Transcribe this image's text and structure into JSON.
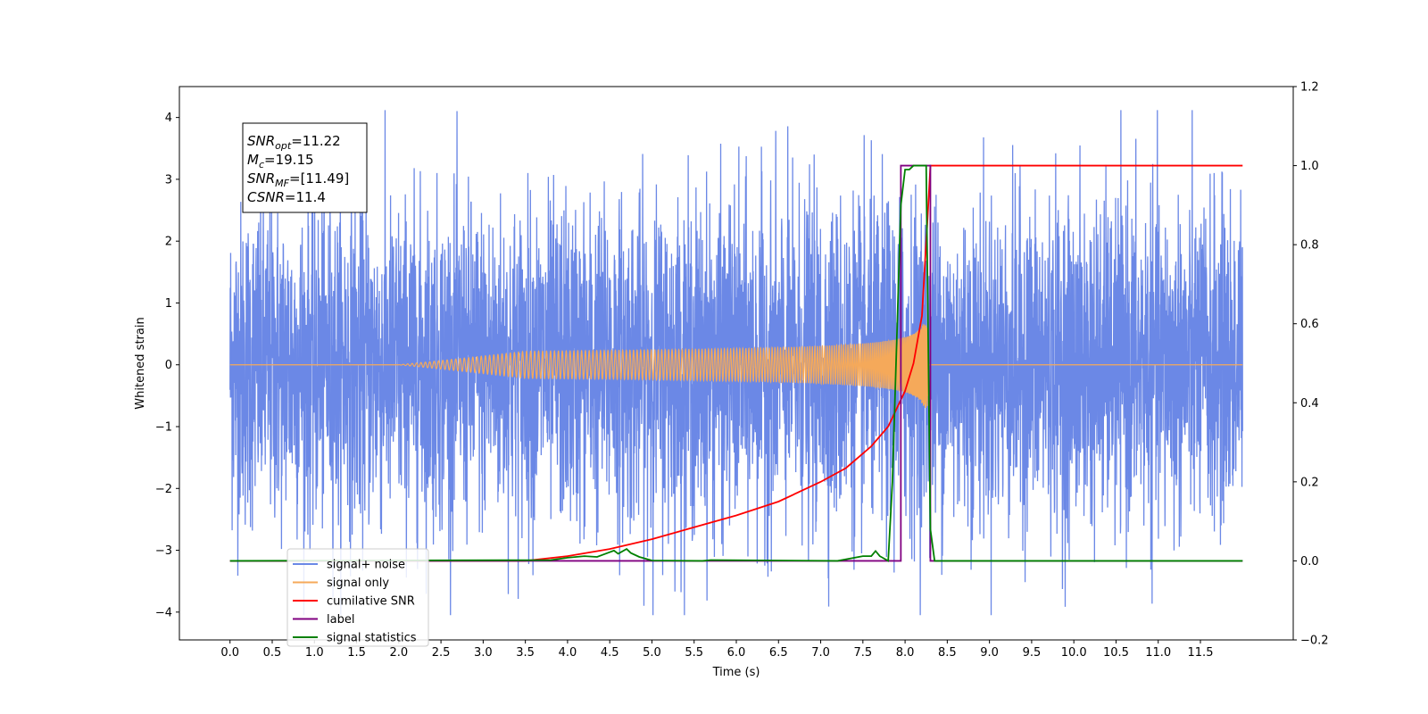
{
  "chart_data": {
    "type": "line",
    "xlabel": "Time (s)",
    "ylabel": "Whitened strain",
    "xlim": [
      -0.6,
      12.6
    ],
    "ylim": [
      -4.45,
      4.5
    ],
    "y2lim": [
      -0.2,
      1.2
    ],
    "x_ticks": [
      0.0,
      0.5,
      1.0,
      1.5,
      2.0,
      2.5,
      3.0,
      3.5,
      4.0,
      4.5,
      5.0,
      5.5,
      6.0,
      6.5,
      7.0,
      7.5,
      8.0,
      8.5,
      9.0,
      9.5,
      10.0,
      10.5,
      11.0,
      11.5
    ],
    "x_tick_labels": [
      "0.0",
      "0.5",
      "1.0",
      "1.5",
      "2.0",
      "2.5",
      "3.0",
      "3.5",
      "4.0",
      "4.5",
      "5.0",
      "5.5",
      "6.0",
      "6.5",
      "7.0",
      "7.5",
      "8.0",
      "8.5",
      "9.0",
      "9.5",
      "10.0",
      "10.5",
      "11.0",
      "11.5"
    ],
    "y_ticks": [
      -4,
      -3,
      -2,
      -1,
      0,
      1,
      2,
      3,
      4
    ],
    "y_tick_labels": [
      "−4",
      "−3",
      "−2",
      "−1",
      "0",
      "1",
      "2",
      "3",
      "4"
    ],
    "y2_ticks": [
      -0.2,
      0.0,
      0.2,
      0.4,
      0.6,
      0.8,
      1.0,
      1.2
    ],
    "y2_tick_labels": [
      "−0.2",
      "0.0",
      "0.2",
      "0.4",
      "0.6",
      "0.8",
      "1.0",
      "1.2"
    ],
    "grid": false,
    "legend_position": "lower-left",
    "colors": {
      "signal_noise": "#6b88e6",
      "signal_only": "#f5a95a",
      "cumulative_snr": "#ff0000",
      "label": "#800080",
      "signal_statistics": "#008000"
    },
    "noise_envelope": {
      "x_range": [
        0.0,
        12.0
      ],
      "typical_amplitude": 1.3,
      "peak_maximum": 4.12,
      "peak_minimum": -4.05
    },
    "signal_only": {
      "x_range": [
        0.0,
        12.0
      ],
      "chirp_start": 2.0,
      "merger_time": 8.27,
      "amplitude_at_start": 0.005,
      "amplitude_near_merger": 0.55
    },
    "series": [
      {
        "name": "cumilative SNR",
        "axis": "right",
        "x": [
          0.0,
          3.5,
          4.0,
          4.5,
          5.0,
          5.5,
          6.0,
          6.5,
          7.0,
          7.3,
          7.6,
          7.8,
          8.0,
          8.1,
          8.2,
          8.27,
          8.3,
          12.0
        ],
        "y": [
          0.0,
          0.0,
          0.012,
          0.03,
          0.055,
          0.085,
          0.115,
          0.15,
          0.2,
          0.235,
          0.29,
          0.34,
          0.43,
          0.5,
          0.62,
          0.88,
          1.0,
          1.0
        ]
      },
      {
        "name": "label",
        "axis": "right",
        "x": [
          0.0,
          7.95,
          7.95,
          8.3,
          8.3,
          12.0
        ],
        "y": [
          0.0,
          0.0,
          1.0,
          1.0,
          0.0,
          0.0
        ]
      },
      {
        "name": "signal statistics",
        "axis": "right",
        "x": [
          0.0,
          3.8,
          4.0,
          4.2,
          4.35,
          4.45,
          4.55,
          4.6,
          4.7,
          4.75,
          4.85,
          5.0,
          5.6,
          5.7,
          7.2,
          7.5,
          7.6,
          7.65,
          7.7,
          7.8,
          7.85,
          7.9,
          7.95,
          8.0,
          8.05,
          8.1,
          8.25,
          8.3,
          8.35,
          12.0
        ],
        "y": [
          0.0,
          0.002,
          0.008,
          0.012,
          0.01,
          0.018,
          0.026,
          0.018,
          0.03,
          0.02,
          0.01,
          0.001,
          0.0,
          0.002,
          0.0,
          0.012,
          0.012,
          0.025,
          0.012,
          0.0,
          0.2,
          0.55,
          0.9,
          0.99,
          0.99,
          1.0,
          1.0,
          0.08,
          0.0,
          0.0
        ]
      }
    ],
    "legend": [
      {
        "label": "signal+ noise",
        "key": "signal_noise"
      },
      {
        "label": "signal only",
        "key": "signal_only"
      },
      {
        "label": "cumilative SNR",
        "key": "cumulative_snr"
      },
      {
        "label": "label",
        "key": "label"
      },
      {
        "label": "signal statistics",
        "key": "signal_statistics"
      }
    ],
    "annotation_lines": [
      {
        "sym": "SNR",
        "sub": "opt",
        "val": "=11.22"
      },
      {
        "sym": "M",
        "sub": "c",
        "val": "=19.15"
      },
      {
        "sym": "SNR",
        "sub": "MF",
        "val": "=[11.49]"
      },
      {
        "sym": "CSNR",
        "sub": "",
        "val": "=11.4"
      }
    ]
  }
}
